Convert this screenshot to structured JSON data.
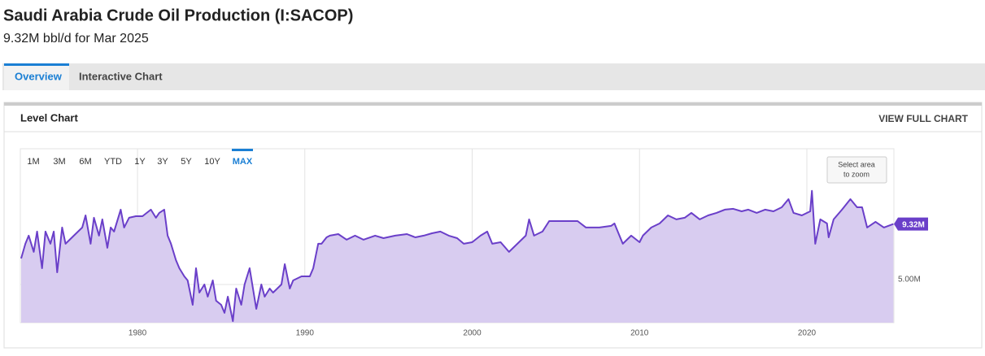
{
  "header": {
    "title": "Saudi Arabia Crude Oil Production (I:SACOP)",
    "subtitle": "9.32M bbl/d for Mar 2025"
  },
  "tabs": [
    "Overview",
    "Interactive Chart"
  ],
  "active_tab": 0,
  "panel": {
    "title": "Level Chart",
    "link": "VIEW FULL CHART"
  },
  "range_buttons": [
    "1M",
    "3M",
    "6M",
    "YTD",
    "1Y",
    "3Y",
    "5Y",
    "10Y",
    "MAX"
  ],
  "active_range_button": 8,
  "zoom_hint": [
    "Select area",
    "to zoom"
  ],
  "chart_data": {
    "type": "area",
    "color": "#6a3fc9",
    "fill": "#d8ccf0",
    "x": [
      1973.05,
      1973.3,
      1973.5,
      1973.8,
      1974.0,
      1974.3,
      1974.5,
      1974.8,
      1975.0,
      1975.2,
      1975.5,
      1975.7,
      1976.2,
      1976.7,
      1976.9,
      1977.2,
      1977.4,
      1977.7,
      1977.9,
      1978.2,
      1978.4,
      1978.6,
      1979.0,
      1979.2,
      1979.5,
      1979.9,
      1980.3,
      1980.8,
      1981.1,
      1981.3,
      1981.6,
      1981.8,
      1982.0,
      1982.3,
      1982.5,
      1982.8,
      1983.0,
      1983.3,
      1983.5,
      1983.7,
      1984.0,
      1984.2,
      1984.5,
      1984.7,
      1985.0,
      1985.2,
      1985.4,
      1985.7,
      1985.9,
      1986.2,
      1986.4,
      1986.7,
      1986.9,
      1987.1,
      1987.4,
      1987.6,
      1987.9,
      1988.1,
      1988.6,
      1988.8,
      1989.1,
      1989.3,
      1989.8,
      1990.3,
      1990.5,
      1990.8,
      1991.0,
      1991.3,
      1991.5,
      1992.0,
      1992.5,
      1993.0,
      1993.5,
      1994.2,
      1994.7,
      1995.4,
      1996.1,
      1996.6,
      1997.1,
      1997.6,
      1998.1,
      1998.6,
      1999.1,
      1999.5,
      2000.0,
      2000.5,
      2000.9,
      2001.2,
      2001.7,
      2002.2,
      2002.7,
      2003.2,
      2003.4,
      2003.7,
      2004.2,
      2004.6,
      2005.4,
      2006.3,
      2006.8,
      2007.6,
      2008.3,
      2008.5,
      2009.0,
      2009.5,
      2010.0,
      2010.2,
      2010.7,
      2011.2,
      2011.7,
      2012.2,
      2012.7,
      2013.1,
      2013.6,
      2014.1,
      2014.6,
      2015.1,
      2015.6,
      2016.1,
      2016.5,
      2017.0,
      2017.5,
      2018.0,
      2018.5,
      2018.9,
      2019.2,
      2019.7,
      2020.2,
      2020.3,
      2020.5,
      2020.8,
      2021.2,
      2021.3,
      2021.6,
      2022.1,
      2022.6,
      2023.0,
      2023.3,
      2023.6,
      2024.1,
      2024.6,
      2025.17
    ],
    "values": [
      6.86,
      7.91,
      8.49,
      7.33,
      8.78,
      6.16,
      8.78,
      7.91,
      8.78,
      5.87,
      9.07,
      7.91,
      8.49,
      9.07,
      9.94,
      7.91,
      9.77,
      8.49,
      9.65,
      7.62,
      9.07,
      8.78,
      10.35,
      9.07,
      9.77,
      9.88,
      9.88,
      10.35,
      9.77,
      10.12,
      10.35,
      8.49,
      7.91,
      6.74,
      6.16,
      5.58,
      5.29,
      3.55,
      6.16,
      4.42,
      5.0,
      4.13,
      5.29,
      3.84,
      3.55,
      2.97,
      4.13,
      2.38,
      4.71,
      3.55,
      5.0,
      6.16,
      4.71,
      3.26,
      5.0,
      4.13,
      4.71,
      4.42,
      5.0,
      6.45,
      4.71,
      5.29,
      5.58,
      5.58,
      6.16,
      7.91,
      7.91,
      8.37,
      8.49,
      8.6,
      8.2,
      8.49,
      8.2,
      8.49,
      8.31,
      8.49,
      8.6,
      8.37,
      8.49,
      8.66,
      8.78,
      8.49,
      8.31,
      7.91,
      8.02,
      8.49,
      8.78,
      7.91,
      8.02,
      7.33,
      7.91,
      8.49,
      9.65,
      8.49,
      8.78,
      9.53,
      9.53,
      9.53,
      9.07,
      9.07,
      9.19,
      9.36,
      7.91,
      8.49,
      8.02,
      8.49,
      9.07,
      9.36,
      9.94,
      9.65,
      9.77,
      10.12,
      9.65,
      9.94,
      10.12,
      10.35,
      10.41,
      10.23,
      10.35,
      10.12,
      10.35,
      10.23,
      10.52,
      11.1,
      10.12,
      9.94,
      10.23,
      11.69,
      7.91,
      9.65,
      9.36,
      8.37,
      9.65,
      10.35,
      11.1,
      10.52,
      10.52,
      9.07,
      9.48,
      9.07,
      9.32
    ],
    "current_value_label": "9.32M",
    "xlim": [
      1973.0,
      2025.2
    ],
    "ylim": [
      2.27,
      14.7
    ],
    "xticks": [
      1980,
      1990,
      2000,
      2010,
      2020
    ],
    "yticks": [
      {
        "value": 5,
        "label": "5.00M"
      }
    ],
    "grid": true
  }
}
